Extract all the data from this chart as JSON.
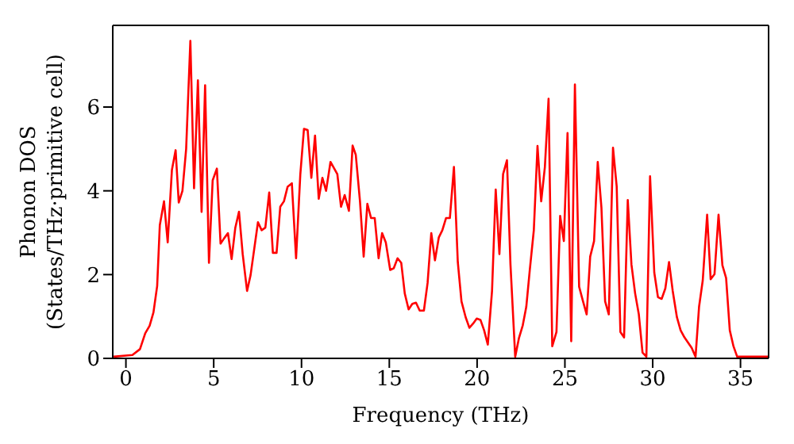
{
  "chart_data": {
    "type": "line",
    "xlabel": "Frequency (THz)",
    "ylabel": "Phonon DOS\n(States/THz·primitive cell)",
    "xlim": [
      -0.75,
      36.6
    ],
    "ylim": [
      0,
      7.95
    ],
    "xticks": [
      0,
      5,
      10,
      15,
      20,
      25,
      30,
      35
    ],
    "yticks": [
      0,
      2,
      4,
      6
    ],
    "marker": "none",
    "line_style": "solid",
    "series": [
      {
        "color": "#ff0000",
        "x": [
          -0.7,
          0.37,
          0.8,
          1.1,
          1.35,
          1.57,
          1.78,
          1.93,
          2.17,
          2.38,
          2.62,
          2.83,
          3.01,
          3.22,
          3.43,
          3.67,
          3.88,
          4.1,
          4.31,
          4.51,
          4.73,
          4.94,
          5.18,
          5.39,
          5.6,
          5.81,
          6.02,
          6.23,
          6.44,
          6.65,
          6.9,
          7.1,
          7.31,
          7.52,
          7.73,
          7.94,
          8.16,
          8.37,
          8.58,
          8.79,
          9.0,
          9.21,
          9.45,
          9.69,
          9.93,
          10.14,
          10.35,
          10.56,
          10.77,
          10.98,
          11.19,
          11.4,
          11.65,
          12.04,
          12.25,
          12.46,
          12.7,
          12.91,
          13.09,
          13.33,
          13.54,
          13.75,
          13.96,
          14.17,
          14.39,
          14.59,
          14.8,
          15.05,
          15.25,
          15.47,
          15.68,
          15.88,
          16.1,
          16.31,
          16.52,
          16.73,
          16.97,
          17.18,
          17.39,
          17.6,
          17.82,
          18.02,
          18.23,
          18.45,
          18.68,
          18.9,
          19.11,
          19.35,
          19.56,
          19.77,
          19.98,
          20.19,
          20.4,
          20.61,
          20.85,
          21.06,
          21.27,
          21.48,
          21.7,
          21.9,
          22.17,
          22.38,
          22.6,
          22.8,
          23.0,
          23.23,
          23.44,
          23.65,
          23.86,
          24.07,
          24.28,
          24.52,
          24.73,
          24.94,
          25.15,
          25.36,
          25.57,
          25.81,
          26.02,
          26.24,
          26.44,
          26.66,
          26.87,
          27.08,
          27.29,
          27.5,
          27.74,
          27.95,
          28.16,
          28.37,
          28.58,
          28.79,
          29.0,
          29.21,
          29.42,
          29.64,
          29.85,
          30.09,
          30.3,
          30.51,
          30.72,
          30.93,
          31.14,
          31.38,
          31.59,
          31.81,
          32.01,
          32.22,
          32.44,
          32.64,
          32.85,
          33.1,
          33.3,
          33.52,
          33.75,
          33.97,
          34.18,
          34.39,
          34.6,
          34.81,
          36.6
        ],
        "values": [
          0.04,
          0.08,
          0.22,
          0.6,
          0.78,
          1.1,
          1.73,
          3.18,
          3.75,
          2.77,
          4.5,
          4.97,
          3.72,
          4.0,
          5.0,
          7.58,
          4.06,
          6.64,
          3.5,
          6.52,
          2.28,
          4.25,
          4.53,
          2.74,
          2.87,
          2.99,
          2.37,
          3.12,
          3.5,
          2.49,
          1.61,
          1.99,
          2.62,
          3.25,
          3.06,
          3.12,
          3.96,
          2.52,
          2.52,
          3.62,
          3.75,
          4.1,
          4.18,
          2.39,
          4.38,
          5.48,
          5.45,
          4.31,
          5.32,
          3.81,
          4.31,
          4.0,
          4.69,
          4.4,
          3.62,
          3.9,
          3.52,
          5.08,
          4.86,
          3.75,
          2.43,
          3.69,
          3.35,
          3.35,
          2.39,
          2.99,
          2.77,
          2.11,
          2.15,
          2.39,
          2.28,
          1.55,
          1.17,
          1.3,
          1.33,
          1.14,
          1.14,
          1.8,
          2.99,
          2.34,
          2.89,
          3.06,
          3.35,
          3.35,
          4.57,
          2.3,
          1.36,
          0.98,
          0.73,
          0.83,
          0.95,
          0.92,
          0.67,
          0.33,
          1.61,
          4.03,
          2.49,
          4.4,
          4.73,
          2.24,
          0.04,
          0.48,
          0.79,
          1.23,
          2.11,
          3.06,
          5.07,
          3.75,
          4.57,
          6.2,
          0.29,
          0.63,
          3.4,
          2.8,
          5.38,
          0.41,
          6.54,
          1.71,
          1.38,
          1.05,
          2.43,
          2.8,
          4.69,
          3.6,
          1.36,
          1.05,
          5.03,
          4.1,
          0.63,
          0.5,
          3.78,
          2.24,
          1.55,
          1.05,
          0.14,
          0.04,
          4.35,
          2.05,
          1.46,
          1.42,
          1.67,
          2.3,
          1.61,
          0.98,
          0.67,
          0.5,
          0.38,
          0.25,
          0.04,
          1.23,
          1.86,
          3.43,
          1.89,
          2.01,
          3.43,
          2.22,
          1.92,
          0.67,
          0.29,
          0.04,
          0.04
        ]
      }
    ]
  }
}
